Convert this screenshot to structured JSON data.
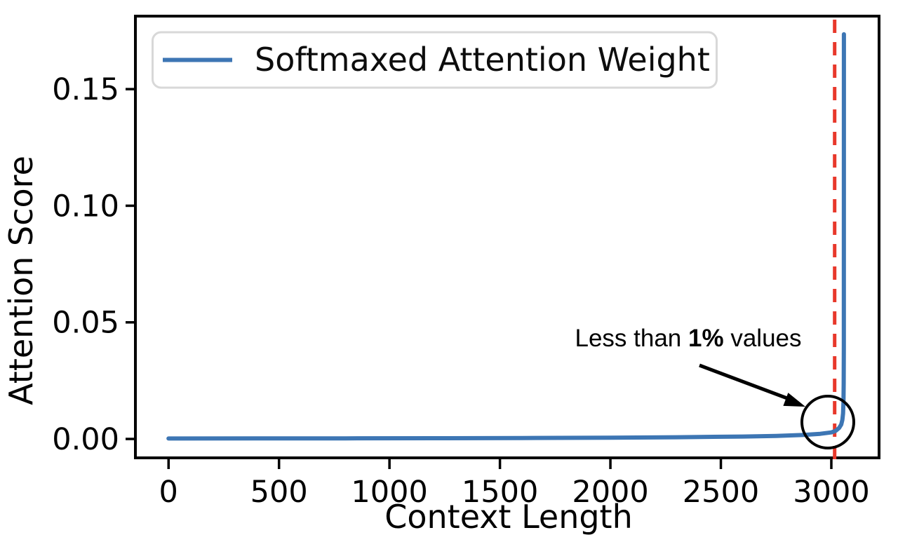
{
  "chart_data": {
    "type": "line",
    "title": "",
    "xlabel": "Context Length",
    "ylabel": "Attention Score",
    "grid": false,
    "legend": {
      "position": "upper left",
      "entries": [
        "Softmaxed Attention Weight"
      ]
    },
    "x_ticks": [
      0,
      500,
      1000,
      1500,
      2000,
      2500,
      3000
    ],
    "y_tick_values": [
      0,
      0.05,
      0.1,
      0.15
    ],
    "y_tick_labels": [
      "0.00",
      "0.05",
      "0.10",
      "0.15"
    ],
    "xlim": [
      -150,
      3216
    ],
    "ylim": [
      -0.0081,
      0.1813
    ],
    "series": [
      {
        "name": "Softmaxed Attention Weight",
        "color": "#3d76b4",
        "points": [
          [
            0,
            0.0002
          ],
          [
            400,
            0.00022
          ],
          [
            800,
            0.00026
          ],
          [
            1200,
            0.00032
          ],
          [
            1600,
            0.0004
          ],
          [
            2000,
            0.00055
          ],
          [
            2300,
            0.00075
          ],
          [
            2600,
            0.00105
          ],
          [
            2750,
            0.0013
          ],
          [
            2870,
            0.0017
          ],
          [
            2950,
            0.0022
          ],
          [
            3000,
            0.0028
          ],
          [
            3020,
            0.0035
          ],
          [
            3035,
            0.0047
          ],
          [
            3045,
            0.0062
          ],
          [
            3050,
            0.0082
          ],
          [
            3053,
            0.011
          ],
          [
            3055,
            0.016
          ],
          [
            3056,
            0.024
          ],
          [
            3056.5,
            0.04
          ],
          [
            3057,
            0.1735
          ]
        ]
      }
    ],
    "vline": {
      "x": 3015,
      "color": "#e8382b",
      "style": "dashed"
    },
    "annotation": {
      "prefix": "Less than",
      "bold": "1%",
      "suffix": "values",
      "full_text": "Less than 1% values"
    },
    "colors": {
      "line": "#3d76b4",
      "vline": "#e8382b",
      "axis": "#000000",
      "legend_border": "#d8d8d8",
      "background": "#ffffff"
    }
  }
}
